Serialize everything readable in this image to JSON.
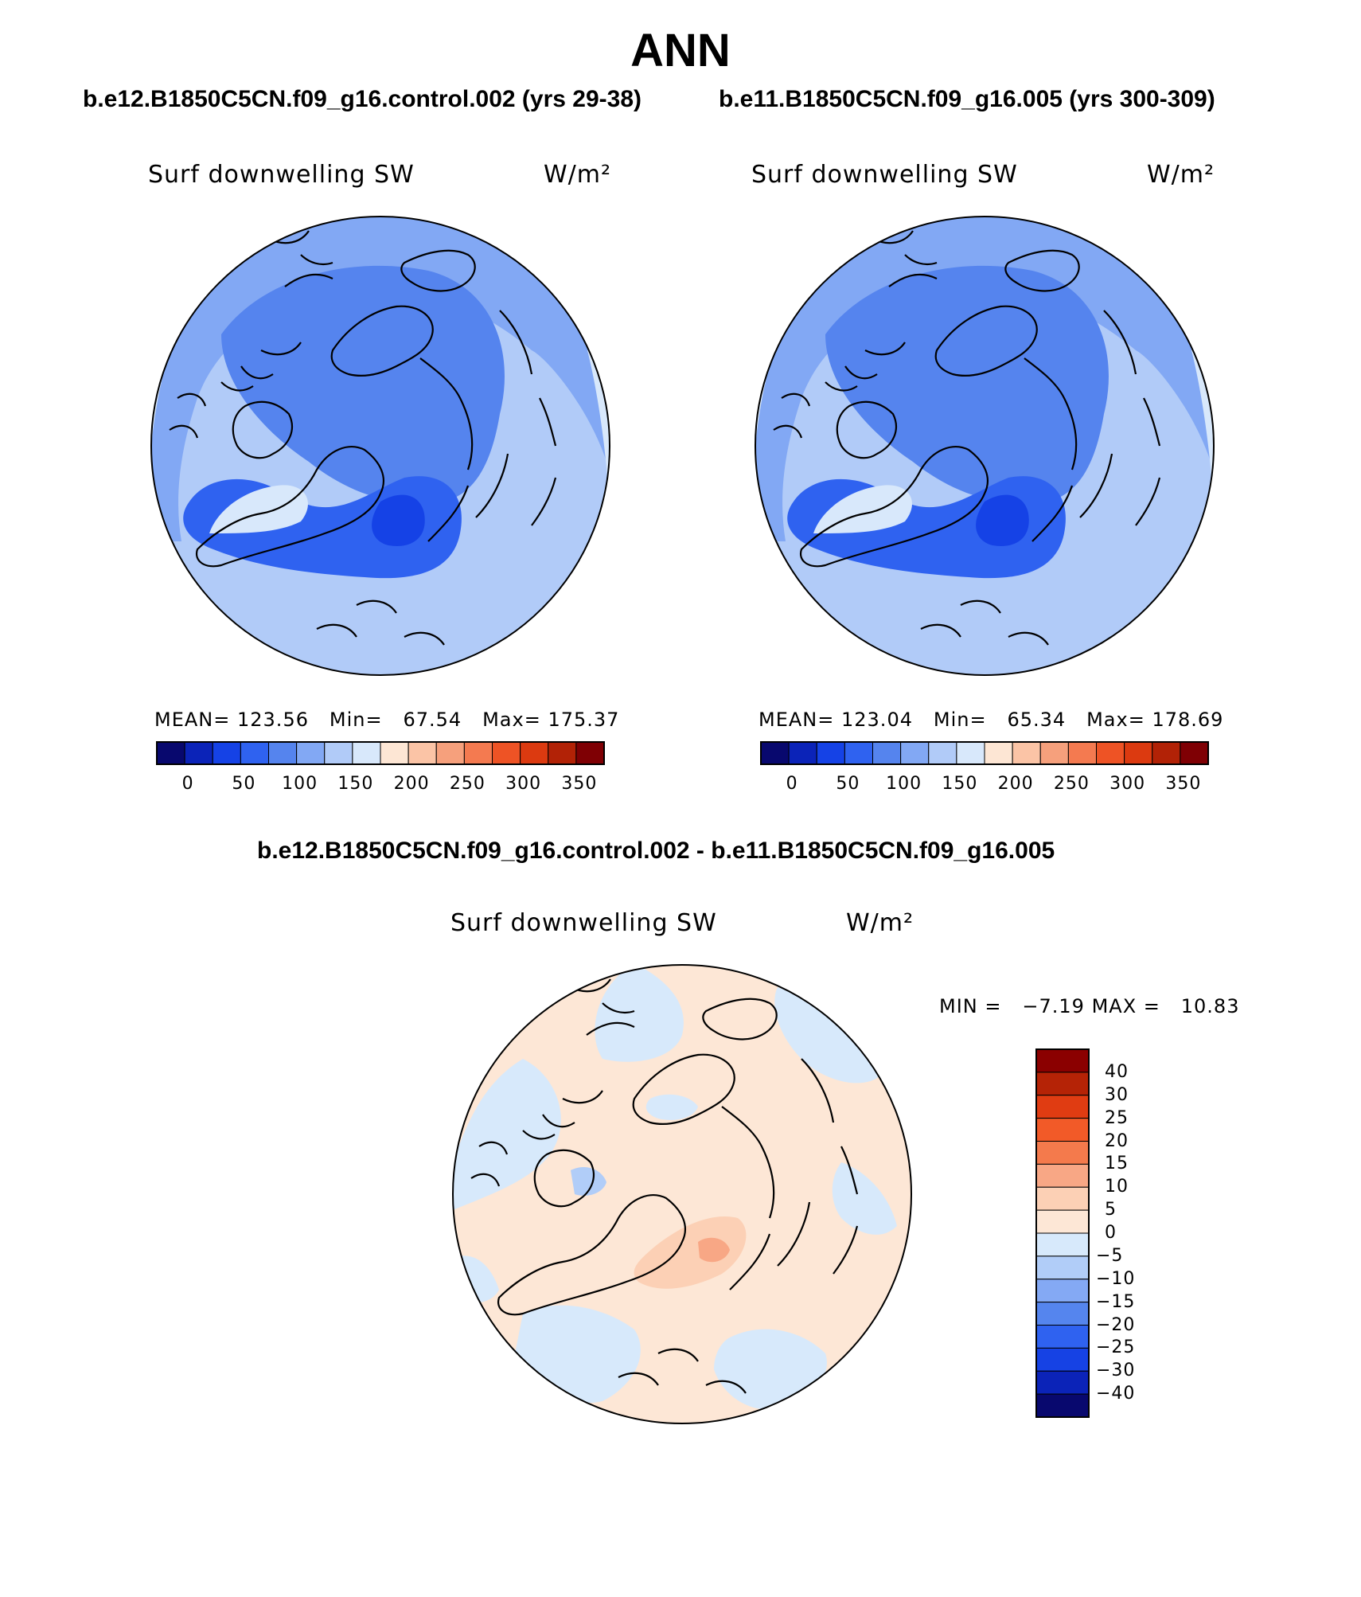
{
  "page": {
    "title": "ANN"
  },
  "panels": [
    {
      "case_title": "b.e12.B1850C5CN.f09_g16.control.002 (yrs 29-38)",
      "variable": "Surf downwelling SW",
      "units": "W/m²",
      "stats": {
        "mean_label": "MEAN=",
        "mean": "123.56",
        "min_label": "Min=",
        "min": "67.54",
        "max_label": "Max=",
        "max": "175.37"
      }
    },
    {
      "case_title": "b.e11.B1850C5CN.f09_g16.005 (yrs 300-309)",
      "variable": "Surf downwelling SW",
      "units": "W/m²",
      "stats": {
        "mean_label": "MEAN=",
        "mean": "123.04",
        "min_label": "Min=",
        "min": "65.34",
        "max_label": "Max=",
        "max": "178.69"
      }
    }
  ],
  "abs_colorbar": {
    "colors": [
      "#08086e",
      "#0b23b8",
      "#1542e6",
      "#2f62f0",
      "#5584ee",
      "#82a8f4",
      "#b1cbf8",
      "#d8e8fb",
      "#fde6d4",
      "#fbc4a6",
      "#f6a07c",
      "#f47a50",
      "#ee5325",
      "#dc3a10",
      "#b22206",
      "#7f0004"
    ],
    "ticks": [
      "0",
      "50",
      "100",
      "150",
      "200",
      "250",
      "300",
      "350"
    ]
  },
  "difference": {
    "case_title": "b.e12.B1850C5CN.f09_g16.control.002 - b.e11.B1850C5CN.f09_g16.005",
    "variable": "Surf downwelling SW",
    "units": "W/m²",
    "minmax": {
      "min_label": "MIN =",
      "min": "−7.19",
      "max_label": "MAX =",
      "max": "10.83"
    },
    "colorbar": {
      "colors_top_to_bottom": [
        "#8b0000",
        "#b52306",
        "#e03c12",
        "#f25a28",
        "#f47a4c",
        "#f8a785",
        "#fcd0b5",
        "#fde7d6",
        "#d7e9fb",
        "#b1cdf8",
        "#84a9f4",
        "#5585ee",
        "#2f62f0",
        "#1642e4",
        "#0b23b8",
        "#08086e"
      ],
      "labels": [
        "40",
        "30",
        "25",
        "20",
        "15",
        "10",
        "5",
        "0",
        "−5",
        "−10",
        "−15",
        "−20",
        "−25",
        "−30",
        "−40"
      ]
    }
  },
  "map_legend": {
    "abs_colors": {
      "outer": "#b1cbf8",
      "ring": "#82a8f4",
      "core": "#5584ee",
      "atlantic": "#2f62f0",
      "atlantic_core": "#1542e6",
      "greenland": "#d8e8fb",
      "margin": "#d8e8fb",
      "sw_edge": "#fde6d4"
    },
    "diff_colors": {
      "base": "#fde7d6",
      "neg": "#d7e9fb",
      "neg2": "#b1cdf8",
      "pos": "#fcd0b5",
      "pos2": "#f8a785"
    }
  }
}
